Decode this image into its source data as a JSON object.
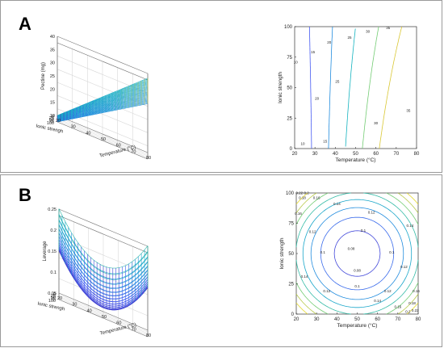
{
  "panels": [
    {
      "label": "A"
    },
    {
      "label": "B"
    }
  ],
  "chart_data": [
    {
      "type": "surface",
      "panel": "A",
      "title": "",
      "xlabel": "Temperature (°C)",
      "ylabel": "Ionic strengh",
      "zlabel": "Pectine (mg)",
      "xticks": [
        20,
        30,
        40,
        50,
        60,
        70,
        80
      ],
      "yticks": [
        0,
        25,
        50,
        75,
        100
      ],
      "zticks": [
        10,
        15,
        20,
        25,
        30,
        35,
        40
      ],
      "xlim": [
        20,
        80
      ],
      "ylim": [
        0,
        100
      ],
      "zlim": [
        10,
        40
      ],
      "surface_corners": {
        "T20_I0": 10,
        "T20_I100": 10,
        "T80_I0": 38,
        "T80_I100": 31
      },
      "grid": true
    },
    {
      "type": "contour",
      "panel": "A",
      "xlabel": "Temperature (°C)",
      "ylabel": "Ionic strength",
      "xticks": [
        20,
        30,
        40,
        50,
        60,
        70,
        80
      ],
      "yticks": [
        0,
        25,
        50,
        75,
        100
      ],
      "xlim": [
        20,
        80
      ],
      "ylim": [
        0,
        100
      ],
      "levels": [
        10,
        15,
        20,
        25,
        30,
        35
      ],
      "contour_labels": [
        "10",
        "15",
        "20",
        "25",
        "30",
        "35",
        "10",
        "15",
        "20",
        "25",
        "30",
        "35"
      ]
    },
    {
      "type": "surface",
      "panel": "B",
      "xlabel": "Temperature (°C)",
      "ylabel": "Ionic strengh",
      "zlabel": "Leverage",
      "xticks": [
        20,
        30,
        40,
        50,
        60,
        70,
        80
      ],
      "yticks": [
        0,
        25,
        50,
        75,
        100
      ],
      "zticks": [
        0.05,
        0.1,
        0.15,
        0.2,
        0.25
      ],
      "xlim": [
        20,
        80
      ],
      "ylim": [
        0,
        100
      ],
      "zlim": [
        0.05,
        0.25
      ],
      "minimum": {
        "T": 50,
        "I": 50,
        "value": 0.067
      },
      "corner_value": 0.25,
      "grid": true
    },
    {
      "type": "contour",
      "panel": "B",
      "xlabel": "Temperature (°C)",
      "ylabel": "Ionic strength",
      "xticks": [
        20,
        30,
        40,
        50,
        60,
        70,
        80
      ],
      "yticks": [
        0,
        25,
        50,
        75,
        100
      ],
      "xlim": [
        20,
        80
      ],
      "ylim": [
        0,
        100
      ],
      "levels": [
        0.08,
        0.1,
        0.12,
        0.14,
        0.16,
        0.18,
        0.2,
        0.22
      ],
      "contour_labels": [
        "0.08",
        "0.08",
        "0.1",
        "0.1",
        "0.1",
        "0.1",
        "0.12",
        "0.12",
        "0.12",
        "0.12",
        "0.12",
        "0.14",
        "0.14",
        "0.14",
        "0.14",
        "0.16",
        "0.16",
        "0.16",
        "0.16",
        "0.18",
        "0.18",
        "0.2",
        "0.2",
        "0.22",
        "0.22"
      ]
    }
  ]
}
